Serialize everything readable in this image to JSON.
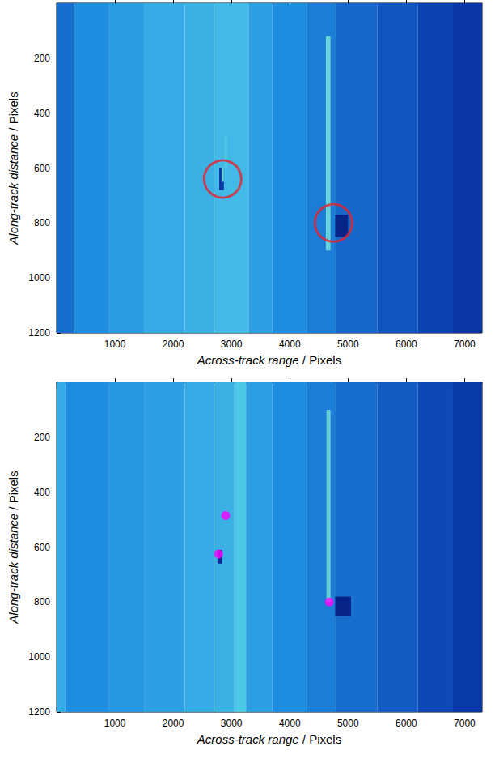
{
  "chart_data": [
    {
      "type": "heatmap",
      "xlabel": "Across-track range / Pixels",
      "ylabel": "Along-track distance / Pixels",
      "xlim": [
        0,
        7300
      ],
      "ylim": [
        0,
        1200
      ],
      "xticks": [
        1000,
        2000,
        3000,
        4000,
        5000,
        6000,
        7000
      ],
      "yticks": [
        200,
        400,
        600,
        800,
        1000,
        1200
      ],
      "cells": [
        [
          0,
          300,
          0,
          1200,
          0.5
        ],
        [
          300,
          900,
          0,
          1200,
          0.6
        ],
        [
          900,
          1500,
          0,
          1200,
          0.65
        ],
        [
          1500,
          2200,
          0,
          1200,
          0.7
        ],
        [
          2200,
          2700,
          0,
          1200,
          0.72
        ],
        [
          2700,
          3300,
          0,
          1200,
          0.75
        ],
        [
          3300,
          3700,
          0,
          1200,
          0.66
        ],
        [
          3700,
          4300,
          0,
          1200,
          0.6
        ],
        [
          4300,
          4800,
          0,
          1200,
          0.55
        ],
        [
          4800,
          5500,
          0,
          1200,
          0.48
        ],
        [
          5500,
          6200,
          0,
          1200,
          0.42
        ],
        [
          6200,
          6800,
          0,
          1200,
          0.36
        ],
        [
          6800,
          7300,
          0,
          1200,
          0.3
        ],
        [
          4620,
          4700,
          120,
          900,
          0.85
        ],
        [
          2880,
          2930,
          480,
          600,
          0.8
        ],
        [
          2790,
          2870,
          600,
          680,
          0.3
        ],
        [
          2830,
          2870,
          600,
          650,
          0.85
        ],
        [
          4780,
          5000,
          770,
          850,
          0.2
        ]
      ],
      "series": [
        {
          "type": "scatter",
          "marker": "open_circle",
          "color": "#e8202a",
          "x": [
            2850,
            4750
          ],
          "y": [
            640,
            800
          ]
        }
      ]
    },
    {
      "type": "heatmap",
      "xlabel": "Across-track range / Pixels",
      "ylabel": "Along-track distance / Pixels",
      "xlim": [
        0,
        7300
      ],
      "ylim": [
        0,
        1200
      ],
      "xticks": [
        1000,
        2000,
        3000,
        4000,
        5000,
        6000,
        7000
      ],
      "yticks": [
        200,
        400,
        600,
        800,
        1000,
        1200
      ],
      "cells": [
        [
          0,
          150,
          0,
          1200,
          0.7
        ],
        [
          150,
          900,
          0,
          1200,
          0.6
        ],
        [
          900,
          1500,
          0,
          1200,
          0.63
        ],
        [
          1500,
          2200,
          0,
          1200,
          0.66
        ],
        [
          2200,
          2700,
          0,
          1200,
          0.7
        ],
        [
          2700,
          3050,
          0,
          1200,
          0.72
        ],
        [
          3050,
          3250,
          0,
          1200,
          0.8
        ],
        [
          3250,
          3700,
          0,
          1200,
          0.66
        ],
        [
          3700,
          4300,
          0,
          1200,
          0.6
        ],
        [
          4300,
          4800,
          0,
          1200,
          0.55
        ],
        [
          4800,
          5500,
          0,
          1200,
          0.5
        ],
        [
          5500,
          6200,
          0,
          1200,
          0.44
        ],
        [
          6200,
          6800,
          0,
          1200,
          0.38
        ],
        [
          6800,
          7300,
          0,
          1200,
          0.32
        ],
        [
          4630,
          4700,
          100,
          800,
          0.85
        ],
        [
          2760,
          2840,
          610,
          660,
          0.25
        ],
        [
          4780,
          5050,
          780,
          850,
          0.2
        ]
      ],
      "series": [
        {
          "type": "scatter",
          "marker": "dot",
          "color": "#ff00ff",
          "x": [
            2900,
            2780,
            4680
          ],
          "y": [
            485,
            625,
            800
          ]
        }
      ]
    }
  ]
}
